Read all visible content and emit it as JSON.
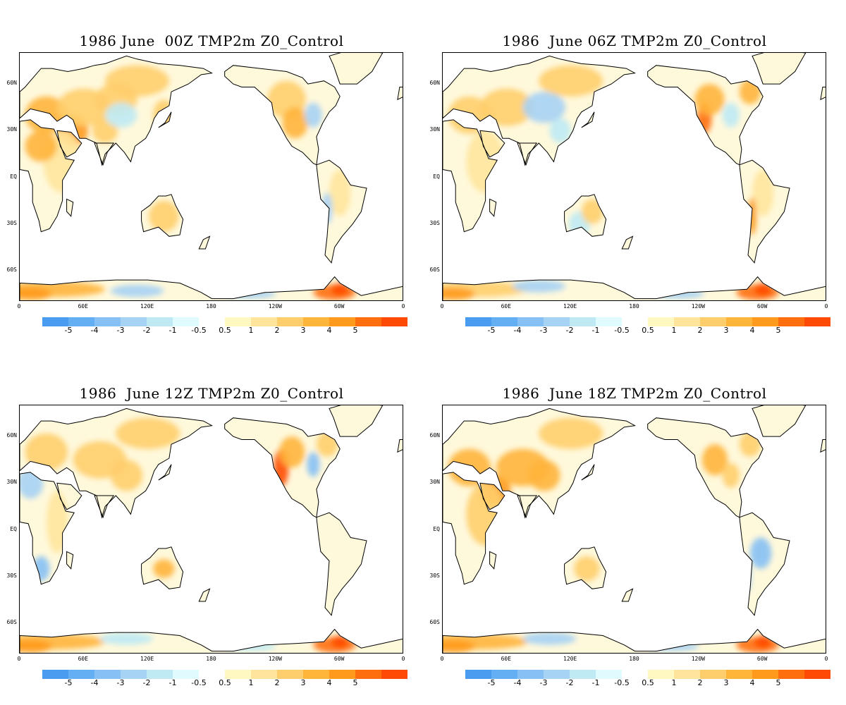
{
  "panels": [
    {
      "title": "1986 June  00Z TMP2m Z0_Control"
    },
    {
      "title": "1986  June 06Z TMP2m Z0_Control"
    },
    {
      "title": "1986  June 12Z TMP2m Z0_Control"
    },
    {
      "title": "1986  June 18Z TMP2m Z0_Control"
    }
  ],
  "lat_labels": [
    "60N",
    "30N",
    "EQ",
    "30S",
    "60S"
  ],
  "lon_labels": [
    "0",
    "60E",
    "120E",
    "180",
    "120W",
    "60W",
    "0"
  ],
  "colorbar": {
    "negative_labels": [
      "-5",
      "-4",
      "-3",
      "-2",
      "-1",
      "-0.5"
    ],
    "positive_labels": [
      "0.5",
      "1",
      "2",
      "3",
      "4",
      "5"
    ],
    "negative_colors": [
      "#4a9cf0",
      "#64aef4",
      "#86c0f4",
      "#a6d2f4",
      "#bfeaf4",
      "#e0fbfd"
    ],
    "positive_colors": [
      "#fff8c0",
      "#ffe59c",
      "#ffce6c",
      "#ffb43a",
      "#ff9a1c",
      "#ff6e0e",
      "#ff4a06"
    ]
  },
  "land_color": "#fff9dc"
}
